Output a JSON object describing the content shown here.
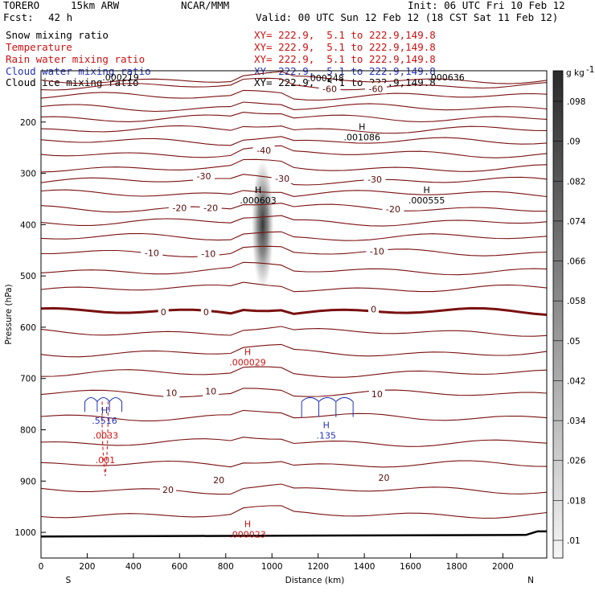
{
  "header": {
    "model": "TORERO",
    "resolution": "15km ARW",
    "org": "NCAR/MMM",
    "init": "Init: 06 UTC Fri 10 Feb 12",
    "fcst_label": "Fcst:",
    "fcst_value": "42 h",
    "valid": "Valid: 00 UTC Sun 12 Feb 12 (18 CST Sat 11 Feb 12)"
  },
  "fields": [
    {
      "name": "Snow mixing ratio",
      "xy": "XY= 222.9,  5.1 to 222.9,149.8",
      "color": "#000000"
    },
    {
      "name": "Temperature",
      "xy": "XY= 222.9,  5.1 to 222.9,149.8",
      "color": "#cc1111"
    },
    {
      "name": "Rain water mixing ratio",
      "xy": "XY= 222.9,  5.1 to 222.9,149.8",
      "color": "#cc1111"
    },
    {
      "name": "Cloud water mixing ratio",
      "xy": "XY= 222.9,  5.1 to 222.9,149.8",
      "color": "#2233bb"
    },
    {
      "name": "Cloud ice mixing ratio",
      "xy": "XY= 222.9,  5.1 to 222.9,149.8",
      "color": "#000000"
    }
  ],
  "chart_data": {
    "type": "cross-section",
    "xlabel": "Distance (km)",
    "ylabel": "Pressure (hPa)",
    "x_ticks": [
      0,
      200,
      400,
      600,
      800,
      1000,
      1200,
      1400,
      1600,
      1800,
      2000
    ],
    "y_ticks": [
      200,
      300,
      400,
      500,
      600,
      700,
      800,
      900,
      1000
    ],
    "xlim": [
      0,
      2190
    ],
    "ylim": [
      1050,
      100
    ],
    "left_end": "S",
    "right_end": "N",
    "colorbar": {
      "unit": "g kg",
      "unit_exp": "-1",
      "ticks": [
        ".01",
        ".018",
        ".026",
        ".034",
        ".042",
        ".05",
        ".058",
        ".066",
        ".074",
        ".082",
        ".09",
        ".098"
      ]
    },
    "temperature_labels": [
      {
        "text": "-60",
        "x": 1250,
        "p": 135
      },
      {
        "text": "-60",
        "x": 1450,
        "p": 135
      },
      {
        "text": "-40",
        "x": 965,
        "p": 255
      },
      {
        "text": "-30",
        "x": 705,
        "p": 305
      },
      {
        "text": "-30",
        "x": 1045,
        "p": 310
      },
      {
        "text": "-30",
        "x": 1445,
        "p": 312
      },
      {
        "text": "-20",
        "x": 600,
        "p": 367
      },
      {
        "text": "-20",
        "x": 735,
        "p": 367
      },
      {
        "text": "-20",
        "x": 1525,
        "p": 370
      },
      {
        "text": "-10",
        "x": 480,
        "p": 455
      },
      {
        "text": "-10",
        "x": 725,
        "p": 457
      },
      {
        "text": "-10",
        "x": 1455,
        "p": 452
      },
      {
        "text": "0",
        "x": 530,
        "p": 570
      },
      {
        "text": "0",
        "x": 715,
        "p": 570
      },
      {
        "text": "0",
        "x": 1440,
        "p": 565
      },
      {
        "text": "10",
        "x": 565,
        "p": 728
      },
      {
        "text": "10",
        "x": 735,
        "p": 725
      },
      {
        "text": "10",
        "x": 1455,
        "p": 730
      },
      {
        "text": "20",
        "x": 770,
        "p": 898
      },
      {
        "text": "20",
        "x": 550,
        "p": 917
      },
      {
        "text": "20",
        "x": 1485,
        "p": 893
      }
    ],
    "snow_maxima": [
      {
        "label": "H",
        "value": ".001086",
        "x": 1390,
        "p": 215
      },
      {
        "label": "H",
        "value": ".000603",
        "x": 940,
        "p": 338
      },
      {
        "label": "H",
        "value": ".000555",
        "x": 1670,
        "p": 338
      }
    ],
    "rain_maxima": [
      {
        "label": "H",
        "value": ".000029",
        "x": 895,
        "p": 654
      },
      {
        "label": "H",
        "value": ".000023",
        "x": 895,
        "p": 990
      },
      {
        "label": "",
        "value": ".0033",
        "x": 280,
        "p": 797
      },
      {
        "label": "",
        "value": ".001",
        "x": 278,
        "p": 845
      }
    ],
    "cloud_water_maxima": [
      {
        "label": "H",
        "value": ".5516",
        "x": 275,
        "p": 768
      },
      {
        "label": "H",
        "value": ".135",
        "x": 1235,
        "p": 797
      }
    ],
    "top_labels": [
      ".000219",
      ".000248",
      ".000636"
    ]
  }
}
